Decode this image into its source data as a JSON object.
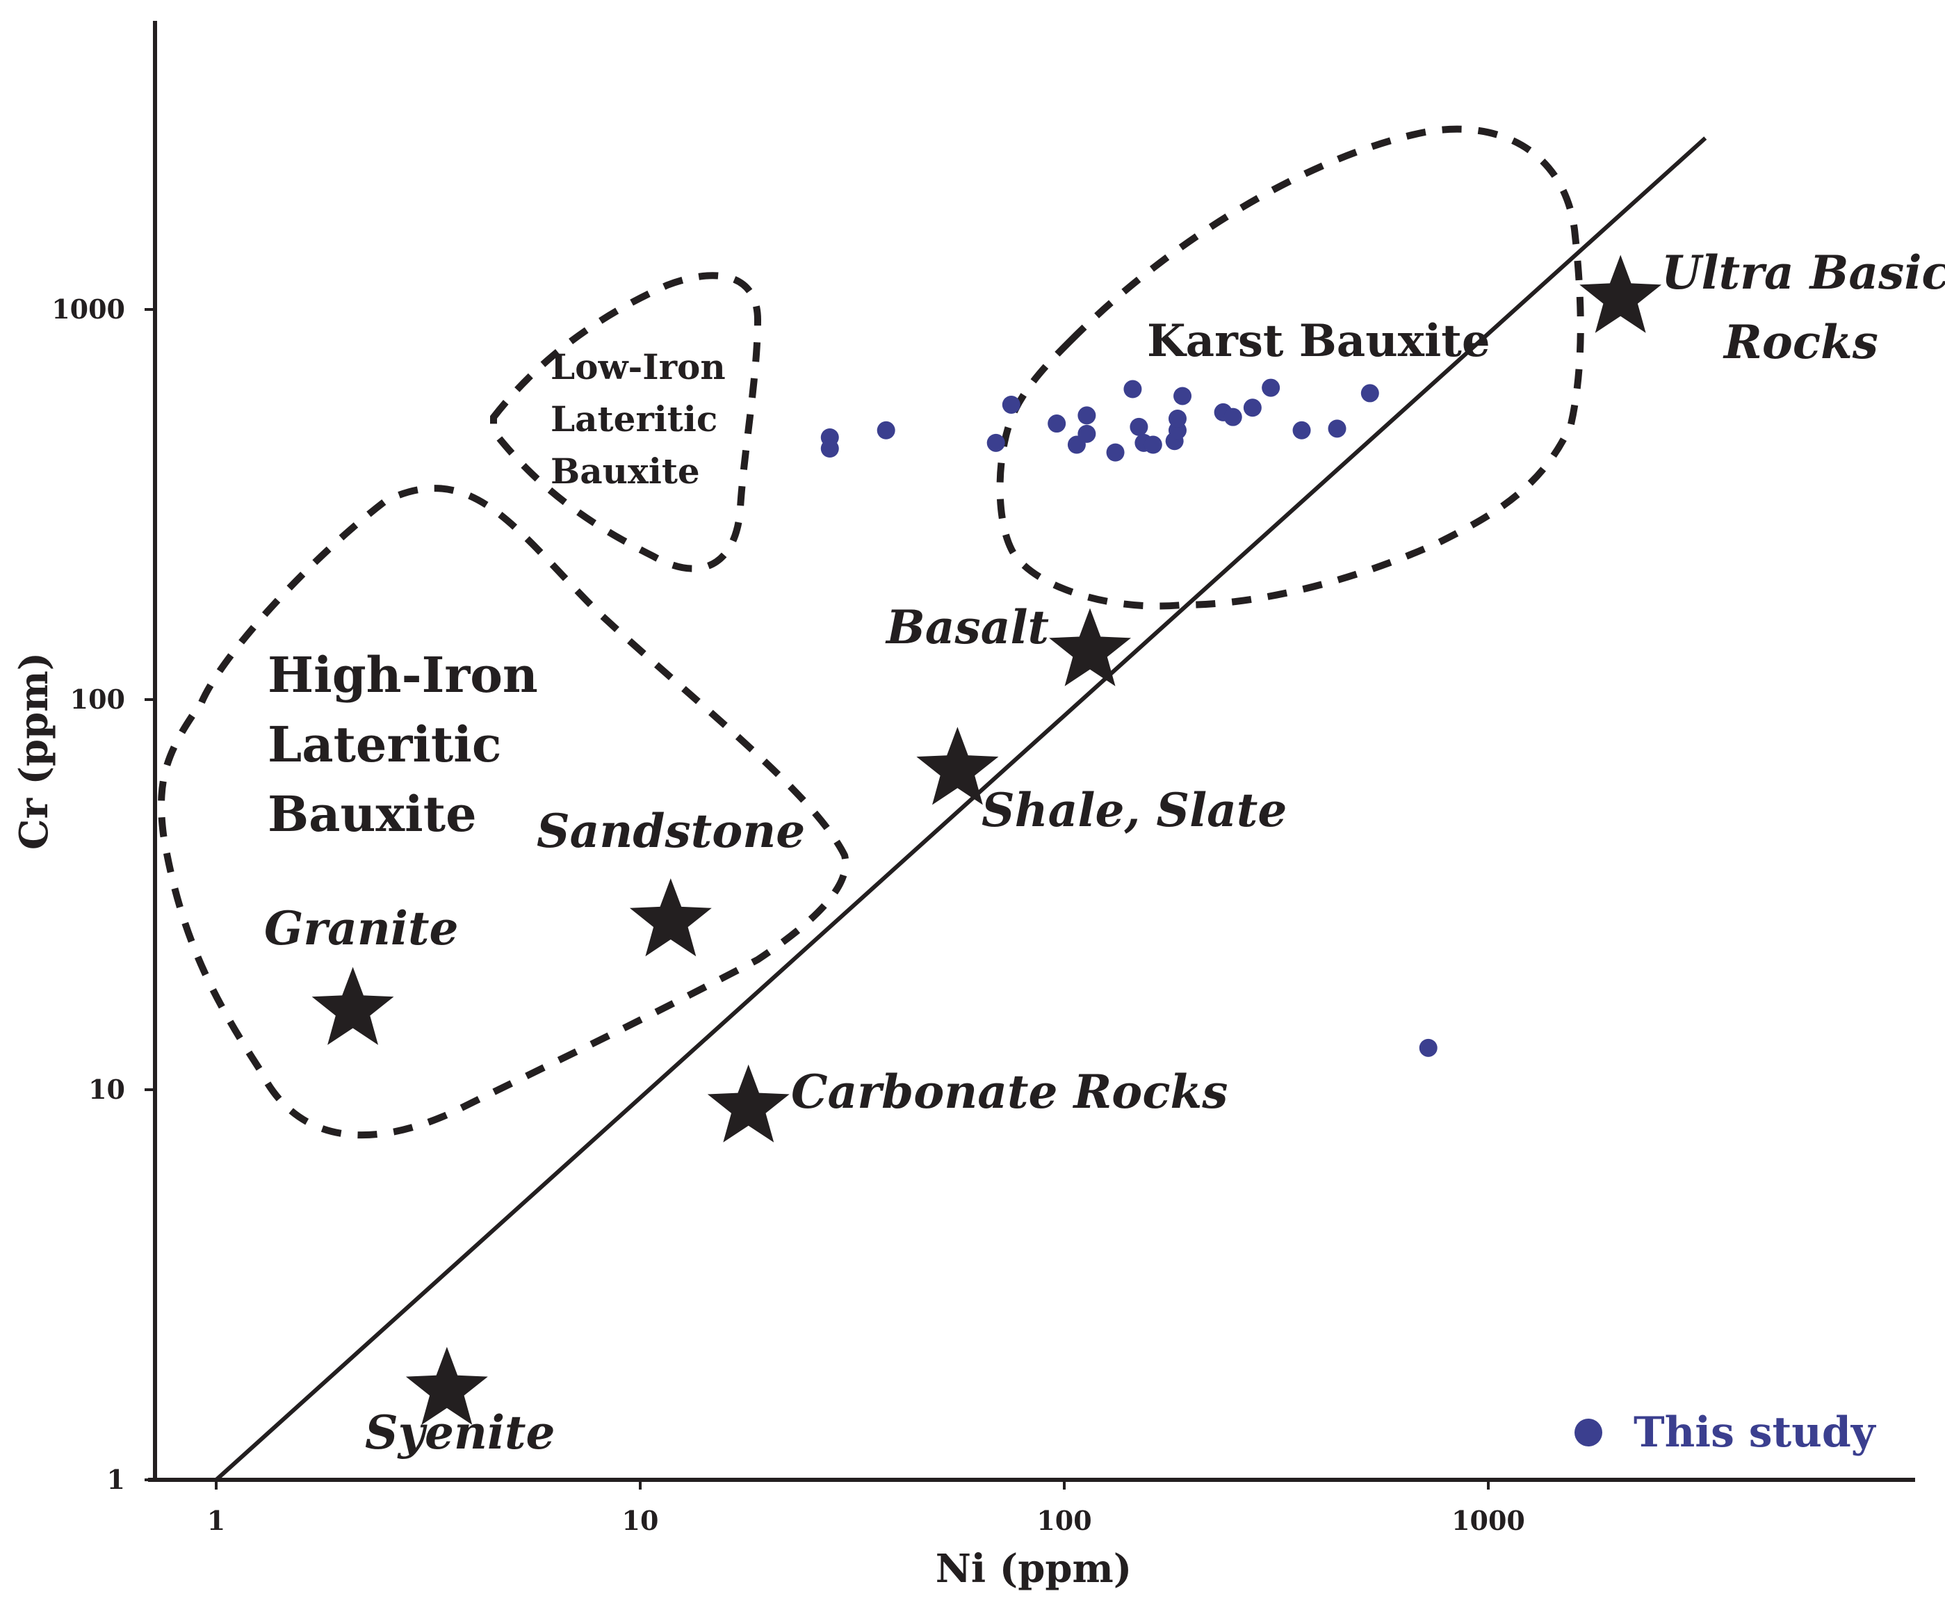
{
  "chart_data": {
    "type": "scatter",
    "xlabel": "Ni (ppm)",
    "ylabel": "Cr (ppm)",
    "xscale": "log",
    "yscale": "log",
    "xlim": [
      0.7,
      9000
    ],
    "ylim": [
      1,
      5000
    ],
    "xticks": [
      {
        "value": 1,
        "label": "1"
      },
      {
        "value": 10,
        "label": "10"
      },
      {
        "value": 100,
        "label": "100"
      },
      {
        "value": 1000,
        "label": "1000"
      }
    ],
    "yticks": [
      {
        "value": 1,
        "label": "1"
      },
      {
        "value": 10,
        "label": "10"
      },
      {
        "value": 100,
        "label": "100"
      },
      {
        "value": 1000,
        "label": "1000"
      }
    ],
    "grid": false,
    "reference_line": {
      "x": [
        1,
        3250
      ],
      "y": [
        1,
        2750
      ]
    },
    "series": [
      {
        "name": "This study",
        "color": "#3b3f8f",
        "marker": "circle",
        "points": [
          {
            "x": 28,
            "y": 470
          },
          {
            "x": 28,
            "y": 440
          },
          {
            "x": 38,
            "y": 490
          },
          {
            "x": 69,
            "y": 455
          },
          {
            "x": 75,
            "y": 570
          },
          {
            "x": 96,
            "y": 510
          },
          {
            "x": 107,
            "y": 450
          },
          {
            "x": 113,
            "y": 480
          },
          {
            "x": 113,
            "y": 535
          },
          {
            "x": 132,
            "y": 430
          },
          {
            "x": 145,
            "y": 625
          },
          {
            "x": 150,
            "y": 500
          },
          {
            "x": 154,
            "y": 455
          },
          {
            "x": 162,
            "y": 450
          },
          {
            "x": 182,
            "y": 460
          },
          {
            "x": 185,
            "y": 490
          },
          {
            "x": 185,
            "y": 525
          },
          {
            "x": 190,
            "y": 600
          },
          {
            "x": 237,
            "y": 545
          },
          {
            "x": 250,
            "y": 530
          },
          {
            "x": 278,
            "y": 560
          },
          {
            "x": 307,
            "y": 630
          },
          {
            "x": 363,
            "y": 490
          },
          {
            "x": 440,
            "y": 495
          },
          {
            "x": 526,
            "y": 610
          },
          {
            "x": 722,
            "y": 12.8
          }
        ]
      }
    ],
    "reference_rocks": [
      {
        "name": "Ultra Basic",
        "name2": "Rocks",
        "x": 2050,
        "y": 1070
      },
      {
        "name": "Basalt",
        "x": 115,
        "y": 133
      },
      {
        "name": "Shale, Slate",
        "x": 56,
        "y": 66
      },
      {
        "name": "Sandstone",
        "x": 11.8,
        "y": 27
      },
      {
        "name": "Granite",
        "x": 2.1,
        "y": 16
      },
      {
        "name": "Carbonate Rocks",
        "x": 18,
        "y": 9
      },
      {
        "name": "Syenite",
        "x": 3.5,
        "y": 1.7
      }
    ],
    "fields": [
      {
        "name": "Karst Bauxite",
        "lines": [
          "Karst Bauxite"
        ]
      },
      {
        "name": "Low-Iron Lateritic Bauxite",
        "lines": [
          "Low-Iron",
          "Lateritic",
          "Bauxite"
        ]
      },
      {
        "name": "High-Iron Lateritic Bauxite",
        "lines": [
          "High-Iron",
          "Lateritic",
          "Bauxite"
        ]
      }
    ],
    "legend": {
      "position": "bottom-right",
      "entries": [
        "This study"
      ]
    }
  }
}
